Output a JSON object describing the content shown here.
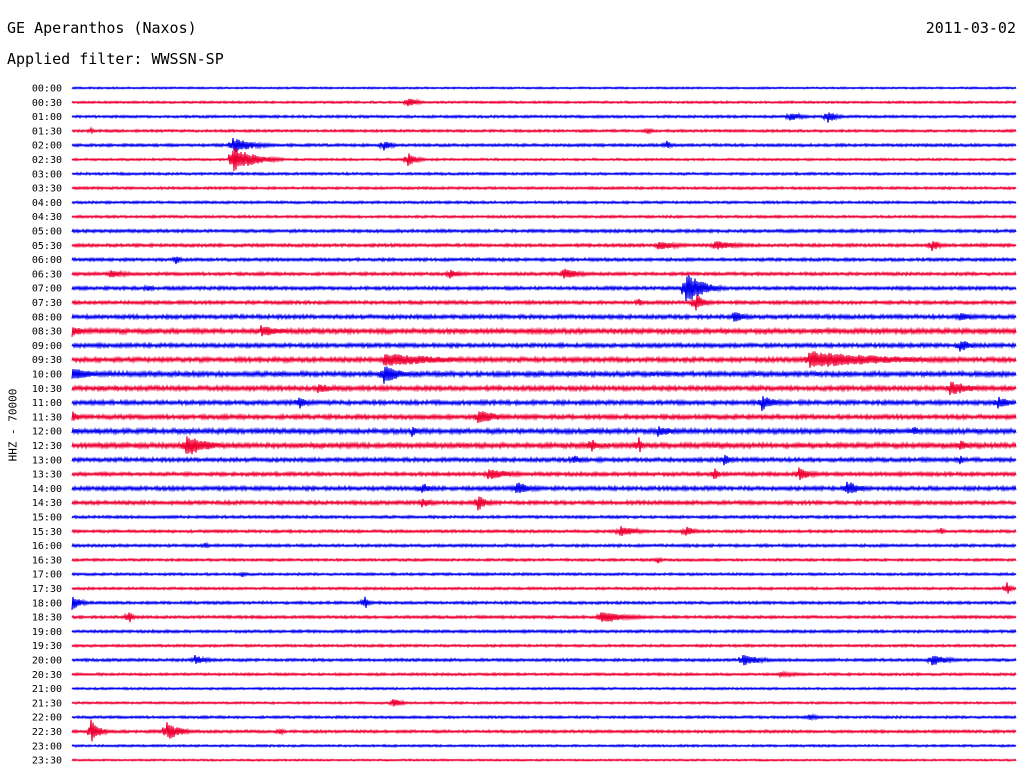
{
  "header": {
    "station": "GE Aperanthos (Naxos)",
    "date": "2011-03-02",
    "filter": "Applied filter: WWSSN-SP"
  },
  "channel_label": "HHZ - 70000",
  "chart_data": {
    "type": "line",
    "title": "GE Aperanthos (Naxos)",
    "subtitle": "Applied filter: WWSSN-SP",
    "ylabel": "HHZ - 70000",
    "colors": {
      "odd_trace": "#0000ee",
      "even_trace": "#ee0033"
    },
    "grid": false,
    "time_labels": [
      "00:00",
      "00:30",
      "01:00",
      "01:30",
      "02:00",
      "02:30",
      "03:00",
      "03:30",
      "04:00",
      "04:30",
      "05:00",
      "05:30",
      "06:00",
      "06:30",
      "07:00",
      "07:30",
      "08:00",
      "08:30",
      "09:00",
      "09:30",
      "10:00",
      "10:30",
      "11:00",
      "11:30",
      "12:00",
      "12:30",
      "13:00",
      "13:30",
      "14:00",
      "14:30",
      "15:00",
      "15:30",
      "16:00",
      "16:30",
      "17:00",
      "17:30",
      "18:00",
      "18:30",
      "19:00",
      "19:30",
      "20:00",
      "20:30",
      "21:00",
      "21:30",
      "22:00",
      "22:30",
      "23:00",
      "23:30"
    ],
    "noise_levels": [
      0.6,
      0.7,
      0.8,
      0.8,
      0.9,
      0.7,
      0.8,
      0.8,
      0.8,
      0.8,
      1.0,
      1.0,
      1.0,
      1.0,
      1.1,
      1.1,
      1.3,
      1.6,
      1.3,
      1.5,
      1.6,
      1.5,
      1.4,
      1.4,
      1.6,
      1.6,
      1.3,
      1.2,
      1.3,
      1.2,
      0.9,
      0.9,
      0.9,
      0.8,
      0.8,
      0.8,
      0.9,
      0.9,
      0.9,
      0.8,
      0.9,
      0.8,
      0.7,
      0.7,
      0.8,
      0.9,
      0.7,
      0.6
    ],
    "events": [
      {
        "row": 1,
        "t": 0.355,
        "amp": 6,
        "dur": 0.02
      },
      {
        "row": 2,
        "t": 0.76,
        "amp": 5,
        "dur": 0.03
      },
      {
        "row": 2,
        "t": 0.8,
        "amp": 7,
        "dur": 0.02
      },
      {
        "row": 3,
        "t": 0.61,
        "amp": 4,
        "dur": 0.01
      },
      {
        "row": 3,
        "t": 0.02,
        "amp": 3,
        "dur": 0.01
      },
      {
        "row": 4,
        "t": 0.17,
        "amp": 8,
        "dur": 0.05
      },
      {
        "row": 4,
        "t": 0.33,
        "amp": 6,
        "dur": 0.02
      },
      {
        "row": 4,
        "t": 0.63,
        "amp": 5,
        "dur": 0.01
      },
      {
        "row": 5,
        "t": 0.17,
        "amp": 14,
        "dur": 0.05
      },
      {
        "row": 5,
        "t": 0.355,
        "amp": 8,
        "dur": 0.02
      },
      {
        "row": 11,
        "t": 0.62,
        "amp": 5,
        "dur": 0.05
      },
      {
        "row": 11,
        "t": 0.91,
        "amp": 7,
        "dur": 0.02
      },
      {
        "row": 11,
        "t": 0.68,
        "amp": 5,
        "dur": 0.06
      },
      {
        "row": 12,
        "t": 0.11,
        "amp": 6,
        "dur": 0.01
      },
      {
        "row": 13,
        "t": 0.52,
        "amp": 6,
        "dur": 0.04
      },
      {
        "row": 13,
        "t": 0.4,
        "amp": 6,
        "dur": 0.02
      },
      {
        "row": 13,
        "t": 0.04,
        "amp": 4,
        "dur": 0.05
      },
      {
        "row": 14,
        "t": 0.65,
        "amp": 17,
        "dur": 0.04
      },
      {
        "row": 14,
        "t": 0.08,
        "amp": 5,
        "dur": 0.01
      },
      {
        "row": 15,
        "t": 0.66,
        "amp": 10,
        "dur": 0.02
      },
      {
        "row": 15,
        "t": 0.6,
        "amp": 5,
        "dur": 0.01
      },
      {
        "row": 16,
        "t": 0.7,
        "amp": 6,
        "dur": 0.03
      },
      {
        "row": 16,
        "t": 0.94,
        "amp": 6,
        "dur": 0.03
      },
      {
        "row": 17,
        "t": 0.0,
        "amp": 6,
        "dur": 0.03
      },
      {
        "row": 17,
        "t": 0.2,
        "amp": 6,
        "dur": 0.06
      },
      {
        "row": 18,
        "t": 0.94,
        "amp": 7,
        "dur": 0.03
      },
      {
        "row": 19,
        "t": 0.33,
        "amp": 7,
        "dur": 0.15
      },
      {
        "row": 19,
        "t": 0.78,
        "amp": 9,
        "dur": 0.2
      },
      {
        "row": 20,
        "t": 0.33,
        "amp": 10,
        "dur": 0.04
      },
      {
        "row": 20,
        "t": 0.0,
        "amp": 6,
        "dur": 0.06
      },
      {
        "row": 21,
        "t": 0.93,
        "amp": 8,
        "dur": 0.05
      },
      {
        "row": 21,
        "t": 0.26,
        "amp": 5,
        "dur": 0.05
      },
      {
        "row": 22,
        "t": 0.24,
        "amp": 7,
        "dur": 0.02
      },
      {
        "row": 22,
        "t": 0.73,
        "amp": 9,
        "dur": 0.03
      },
      {
        "row": 22,
        "t": 0.98,
        "amp": 7,
        "dur": 0.03
      },
      {
        "row": 23,
        "t": 0.43,
        "amp": 9,
        "dur": 0.04
      },
      {
        "row": 23,
        "t": 0.0,
        "amp": 6,
        "dur": 0.02
      },
      {
        "row": 24,
        "t": 0.36,
        "amp": 6,
        "dur": 0.02
      },
      {
        "row": 24,
        "t": 0.62,
        "amp": 6,
        "dur": 0.04
      },
      {
        "row": 24,
        "t": 0.89,
        "amp": 6,
        "dur": 0.02
      },
      {
        "row": 25,
        "t": 0.12,
        "amp": 12,
        "dur": 0.05
      },
      {
        "row": 25,
        "t": 0.55,
        "amp": 11,
        "dur": 0.01
      },
      {
        "row": 25,
        "t": 0.6,
        "amp": 10,
        "dur": 0.01
      },
      {
        "row": 25,
        "t": 0.94,
        "amp": 7,
        "dur": 0.02
      },
      {
        "row": 26,
        "t": 0.53,
        "amp": 5,
        "dur": 0.03
      },
      {
        "row": 26,
        "t": 0.69,
        "amp": 6,
        "dur": 0.02
      },
      {
        "row": 26,
        "t": 0.94,
        "amp": 6,
        "dur": 0.01
      },
      {
        "row": 27,
        "t": 0.44,
        "amp": 6,
        "dur": 0.06
      },
      {
        "row": 27,
        "t": 0.68,
        "amp": 8,
        "dur": 0.01
      },
      {
        "row": 27,
        "t": 0.77,
        "amp": 7,
        "dur": 0.03
      },
      {
        "row": 28,
        "t": 0.37,
        "amp": 7,
        "dur": 0.02
      },
      {
        "row": 28,
        "t": 0.47,
        "amp": 7,
        "dur": 0.04
      },
      {
        "row": 28,
        "t": 0.82,
        "amp": 9,
        "dur": 0.03
      },
      {
        "row": 29,
        "t": 0.43,
        "amp": 9,
        "dur": 0.02
      },
      {
        "row": 29,
        "t": 0.37,
        "amp": 5,
        "dur": 0.03
      },
      {
        "row": 31,
        "t": 0.58,
        "amp": 6,
        "dur": 0.04
      },
      {
        "row": 31,
        "t": 0.65,
        "amp": 6,
        "dur": 0.02
      },
      {
        "row": 31,
        "t": 0.92,
        "amp": 4,
        "dur": 0.01
      },
      {
        "row": 32,
        "t": 0.14,
        "amp": 4,
        "dur": 0.01
      },
      {
        "row": 33,
        "t": 0.62,
        "amp": 4,
        "dur": 0.01
      },
      {
        "row": 34,
        "t": 0.18,
        "amp": 3,
        "dur": 0.01
      },
      {
        "row": 35,
        "t": 0.99,
        "amp": 7,
        "dur": 0.01
      },
      {
        "row": 36,
        "t": 0.0,
        "amp": 8,
        "dur": 0.02
      },
      {
        "row": 36,
        "t": 0.31,
        "amp": 8,
        "dur": 0.01
      },
      {
        "row": 37,
        "t": 0.06,
        "amp": 7,
        "dur": 0.01
      },
      {
        "row": 37,
        "t": 0.56,
        "amp": 7,
        "dur": 0.06
      },
      {
        "row": 40,
        "t": 0.13,
        "amp": 5,
        "dur": 0.03
      },
      {
        "row": 40,
        "t": 0.71,
        "amp": 7,
        "dur": 0.04
      },
      {
        "row": 40,
        "t": 0.91,
        "amp": 6,
        "dur": 0.04
      },
      {
        "row": 41,
        "t": 0.75,
        "amp": 3,
        "dur": 0.05
      },
      {
        "row": 43,
        "t": 0.34,
        "amp": 5,
        "dur": 0.02
      },
      {
        "row": 44,
        "t": 0.78,
        "amp": 4,
        "dur": 0.02
      },
      {
        "row": 45,
        "t": 0.02,
        "amp": 12,
        "dur": 0.02
      },
      {
        "row": 45,
        "t": 0.1,
        "amp": 10,
        "dur": 0.03
      },
      {
        "row": 45,
        "t": 0.22,
        "amp": 4,
        "dur": 0.01
      }
    ]
  }
}
